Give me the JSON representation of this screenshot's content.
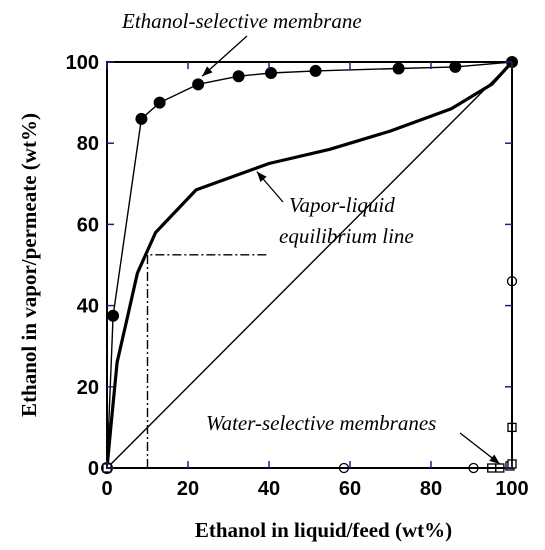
{
  "chart_data": {
    "type": "line",
    "xlabel": "Ethanol in liquid/feed (wt%)",
    "ylabel": "Ethanol in vapor/permeate (wt%)",
    "xlim": [
      0,
      100
    ],
    "ylim": [
      0,
      100
    ],
    "xticks": [
      0,
      20,
      40,
      60,
      80,
      100
    ],
    "yticks": [
      0,
      20,
      40,
      60,
      80,
      100
    ],
    "grid": false,
    "series": [
      {
        "role": "ethanol-selective-membrane",
        "marker": "filled-circle",
        "line": "thin",
        "points": [
          [
            0,
            0
          ],
          [
            1.5,
            37.5
          ],
          [
            8.5,
            86
          ],
          [
            13,
            90
          ],
          [
            22.5,
            94.5
          ],
          [
            32.5,
            96.5
          ],
          [
            40.5,
            97.3
          ],
          [
            51.5,
            97.8
          ],
          [
            72,
            98.4
          ],
          [
            86,
            98.8
          ],
          [
            100,
            100
          ]
        ]
      },
      {
        "role": "vapor-liquid-equilibrium",
        "line": "thick",
        "points": [
          [
            0,
            0
          ],
          [
            1,
            10.5
          ],
          [
            2.5,
            26
          ],
          [
            5,
            37
          ],
          [
            7.5,
            48
          ],
          [
            12,
            58
          ],
          [
            22,
            68.5
          ],
          [
            40,
            75
          ],
          [
            55,
            78.5
          ],
          [
            70,
            83
          ],
          [
            85,
            88.5
          ],
          [
            95,
            94.5
          ],
          [
            100,
            100
          ]
        ]
      },
      {
        "role": "diagonal",
        "line": "thin",
        "points": [
          [
            0,
            0
          ],
          [
            100,
            100
          ]
        ]
      },
      {
        "role": "water-selective-open-circle",
        "marker": "open-circle",
        "points": [
          [
            58.5,
            0
          ],
          [
            90.5,
            0
          ],
          [
            100,
            46
          ]
        ]
      },
      {
        "role": "water-selective-open-square",
        "marker": "open-square",
        "points": [
          [
            0,
            0
          ],
          [
            95,
            0
          ],
          [
            97,
            0
          ],
          [
            99.5,
            0.5
          ],
          [
            100,
            1
          ],
          [
            100,
            10
          ]
        ]
      }
    ],
    "construction_line": {
      "x": 10,
      "y": 52.5,
      "extends_to_x": 40
    },
    "annotations": [
      {
        "text": "Ethanol-selective membrane",
        "target": [
          23.5,
          96.5
        ]
      },
      {
        "text": "Vapor-liquid",
        "target": [
          37,
          73
        ]
      },
      {
        "text": "equilibrium line",
        "target": null
      },
      {
        "text": "Water-selective membranes",
        "target": [
          97,
          1
        ]
      }
    ]
  }
}
